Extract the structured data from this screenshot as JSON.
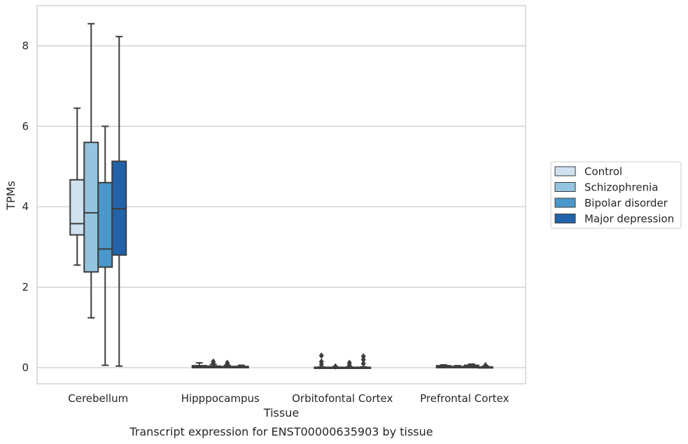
{
  "chart_data": {
    "type": "box",
    "title": "",
    "caption": "Transcript expression for ENST00000635903 by tissue",
    "xlabel": "Tissue",
    "ylabel": "TPMs",
    "ylim": [
      -0.4,
      9.0
    ],
    "yticks": [
      0,
      2,
      4,
      6,
      8
    ],
    "grid": "horizontal",
    "legend_position": "right",
    "categories": [
      "Cerebellum",
      "Hipppocampus",
      "Orbitofontal Cortex",
      "Prefrontal Cortex"
    ],
    "series": [
      {
        "name": "Control",
        "color": "#d0e1f0",
        "boxes": [
          {
            "whislo": 2.55,
            "q1": 3.3,
            "med": 3.58,
            "q3": 4.67,
            "whishi": 6.45,
            "fliers": []
          },
          {
            "whislo": 0.0,
            "q1": 0.0,
            "med": 0.02,
            "q3": 0.05,
            "whishi": 0.12,
            "fliers": []
          },
          {
            "whislo": 0.0,
            "q1": 0.0,
            "med": 0.0,
            "q3": 0.01,
            "whishi": 0.02,
            "fliers": [
              0.08,
              0.15,
              0.3
            ]
          },
          {
            "whislo": 0.0,
            "q1": 0.0,
            "med": 0.02,
            "q3": 0.05,
            "whishi": 0.07,
            "fliers": []
          }
        ]
      },
      {
        "name": "Schizophrenia",
        "color": "#94c4df",
        "boxes": [
          {
            "whislo": 1.24,
            "q1": 2.38,
            "med": 3.85,
            "q3": 5.6,
            "whishi": 8.55,
            "fliers": []
          },
          {
            "whislo": 0.0,
            "q1": 0.0,
            "med": 0.02,
            "q3": 0.04,
            "whishi": 0.08,
            "fliers": [
              0.1,
              0.15
            ]
          },
          {
            "whislo": 0.0,
            "q1": 0.0,
            "med": 0.0,
            "q3": 0.01,
            "whishi": 0.02,
            "fliers": [
              0.03
            ]
          },
          {
            "whislo": 0.0,
            "q1": 0.0,
            "med": 0.01,
            "q3": 0.03,
            "whishi": 0.05,
            "fliers": []
          }
        ]
      },
      {
        "name": "Bipolar disorder",
        "color": "#4a98c9",
        "boxes": [
          {
            "whislo": 0.06,
            "q1": 2.5,
            "med": 2.95,
            "q3": 4.6,
            "whishi": 6.0,
            "fliers": []
          },
          {
            "whislo": 0.0,
            "q1": 0.0,
            "med": 0.01,
            "q3": 0.03,
            "whishi": 0.06,
            "fliers": [
              0.08,
              0.12
            ]
          },
          {
            "whislo": 0.0,
            "q1": 0.0,
            "med": 0.0,
            "q3": 0.01,
            "whishi": 0.02,
            "fliers": [
              0.06,
              0.12
            ]
          },
          {
            "whislo": 0.0,
            "q1": 0.0,
            "med": 0.03,
            "q3": 0.06,
            "whishi": 0.09,
            "fliers": []
          }
        ]
      },
      {
        "name": "Major depression",
        "color": "#2163aa",
        "boxes": [
          {
            "whislo": 0.04,
            "q1": 2.8,
            "med": 3.95,
            "q3": 5.13,
            "whishi": 8.23,
            "fliers": []
          },
          {
            "whislo": 0.0,
            "q1": 0.0,
            "med": 0.01,
            "q3": 0.03,
            "whishi": 0.06,
            "fliers": []
          },
          {
            "whislo": 0.0,
            "q1": 0.0,
            "med": 0.0,
            "q3": 0.01,
            "whishi": 0.02,
            "fliers": [
              0.1,
              0.2,
              0.28
            ]
          },
          {
            "whislo": 0.0,
            "q1": 0.0,
            "med": 0.01,
            "q3": 0.02,
            "whishi": 0.04,
            "fliers": [
              0.06
            ]
          }
        ]
      }
    ]
  }
}
